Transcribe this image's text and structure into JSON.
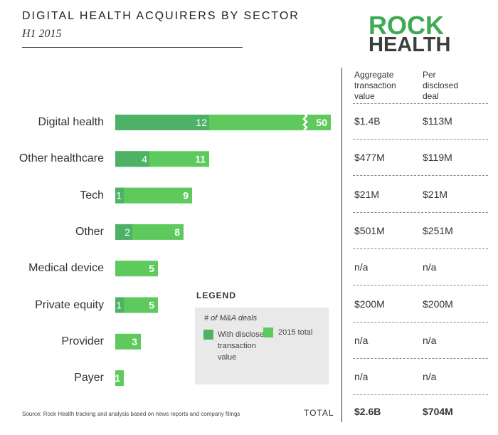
{
  "title": "DIGITAL HEALTH ACQUIRERS BY SECTOR",
  "subtitle": "H1 2015",
  "logo": {
    "line1": "ROCK",
    "line2": "HEALTH"
  },
  "columns": {
    "aggregate": "Aggregate transaction value",
    "per_deal": "Per disclosed deal"
  },
  "legend": {
    "title": "LEGEND",
    "heading": "# of M&A deals",
    "disclosed": "With disclosed transaction value",
    "total": "2015 total"
  },
  "colors": {
    "disclosed": "#4db266",
    "total": "#5ec95c",
    "label_text": "#ffffff"
  },
  "chart_data": {
    "type": "bar",
    "orientation": "horizontal",
    "stacked_overlay": true,
    "categories": [
      "Digital health",
      "Other healthcare",
      "Tech",
      "Other",
      "Medical device",
      "Private equity",
      "Provider",
      "Payer"
    ],
    "series": [
      {
        "name": "With disclosed transaction value",
        "values": [
          12,
          4,
          1,
          2,
          0,
          1,
          0,
          0
        ]
      },
      {
        "name": "2015 total",
        "values": [
          50,
          11,
          9,
          8,
          5,
          5,
          3,
          1
        ]
      }
    ],
    "broken_axis_categories": [
      "Digital health"
    ],
    "table": {
      "aggregate": [
        "$1.4B",
        "$477M",
        "$21M",
        "$501M",
        "n/a",
        "$200M",
        "n/a",
        "n/a"
      ],
      "per_deal": [
        "$113M",
        "$119M",
        "$21M",
        "$251M",
        "n/a",
        "$200M",
        "n/a",
        "n/a"
      ]
    }
  },
  "totals": {
    "label": "TOTAL",
    "aggregate": "$2.6B",
    "per_deal": "$704M"
  },
  "source": "Source: Rock Health tracking and analysis based on news reports and company filings"
}
